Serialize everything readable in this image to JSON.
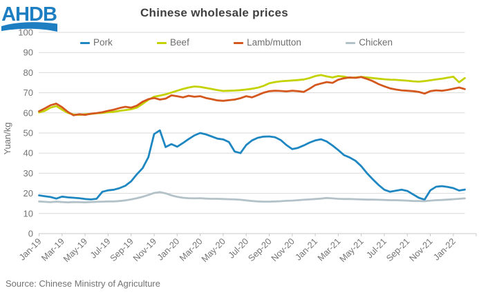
{
  "header": {
    "title": "Chinese wholesale prices",
    "logo_text": "AHDB"
  },
  "source_note": "Source: Chinese Ministry of Agriculture",
  "colors": {
    "title_text": "#404040",
    "axis_text": "#737373",
    "legend_text": "#6e6e6e",
    "gridline": "#d9d9d9",
    "axis_line": "#c9c9c9",
    "logo_blue": "#1d7ec2",
    "pork": "#1e87c2",
    "beef": "#c3d200",
    "lamb": "#d4571d",
    "chicken": "#b3c2c9"
  },
  "chart_data": {
    "type": "line",
    "title": "Chinese wholesale prices",
    "xlabel": "",
    "ylabel": "Yuan/kg",
    "ylim": [
      0,
      100
    ],
    "ytick_interval": 10,
    "grid": "horizontal",
    "legend_position": "top",
    "x_unit": "semi-monthly points, Jan-2019 to early Feb-2022 (2 points per month)",
    "x_tick_labels": [
      "Jan-19",
      "Mar-19",
      "May-19",
      "Jul-19",
      "Sep-19",
      "Nov-19",
      "Jan-20",
      "Mar-20",
      "May-20",
      "Jul-20",
      "Sep-20",
      "Nov-20",
      "Jan-21",
      "Mar-21",
      "May-21",
      "Jul-21",
      "Sep-21",
      "Nov-21",
      "Jan-22"
    ],
    "x_tick_indices": [
      0,
      4,
      8,
      12,
      16,
      20,
      24,
      28,
      32,
      36,
      40,
      44,
      48,
      52,
      56,
      60,
      64,
      68,
      72
    ],
    "series": [
      {
        "name": "Pork",
        "color": "#1e87c2",
        "values": [
          19.0,
          18.6,
          18.2,
          17.4,
          18.4,
          18.0,
          17.8,
          17.6,
          17.2,
          17.0,
          17.3,
          20.8,
          21.5,
          21.8,
          22.6,
          23.8,
          26.0,
          29.5,
          32.5,
          38.0,
          49.5,
          51.3,
          43.0,
          44.5,
          43.2,
          45.0,
          47.0,
          48.8,
          50.0,
          49.3,
          48.3,
          47.2,
          46.8,
          45.5,
          40.8,
          40.0,
          44.0,
          46.3,
          47.6,
          48.2,
          48.3,
          47.9,
          46.5,
          44.0,
          42.0,
          42.6,
          43.8,
          45.2,
          46.3,
          46.9,
          45.8,
          43.8,
          41.5,
          39.0,
          37.8,
          36.2,
          33.5,
          30.0,
          27.0,
          24.2,
          21.8,
          20.8,
          21.3,
          21.8,
          21.2,
          19.5,
          17.8,
          16.9,
          21.5,
          23.3,
          23.6,
          23.2,
          22.6,
          21.4,
          21.9
        ]
      },
      {
        "name": "Beef",
        "color": "#c3d200",
        "values": [
          60.2,
          61.0,
          62.6,
          63.4,
          61.6,
          60.0,
          59.2,
          59.0,
          59.3,
          59.5,
          59.8,
          60.0,
          60.3,
          60.5,
          61.0,
          61.4,
          61.8,
          62.6,
          64.5,
          66.5,
          68.0,
          68.6,
          69.2,
          70.1,
          71.0,
          71.9,
          72.6,
          73.1,
          72.9,
          72.4,
          71.9,
          71.3,
          70.9,
          71.0,
          71.1,
          71.3,
          71.6,
          72.0,
          72.5,
          73.4,
          74.7,
          75.3,
          75.7,
          75.9,
          76.1,
          76.3,
          76.6,
          77.3,
          78.3,
          78.8,
          78.1,
          77.6,
          78.3,
          78.0,
          77.4,
          77.6,
          77.9,
          77.6,
          77.3,
          77.0,
          76.7,
          76.5,
          76.4,
          76.2,
          76.0,
          75.7,
          75.5,
          75.8,
          76.2,
          76.6,
          77.0,
          77.5,
          78.0,
          75.2,
          77.3
        ]
      },
      {
        "name": "Lamb/mutton",
        "color": "#d4571d",
        "values": [
          60.8,
          62.2,
          63.8,
          64.6,
          62.8,
          60.5,
          58.8,
          59.3,
          59.0,
          59.6,
          59.9,
          60.3,
          61.0,
          61.6,
          62.4,
          63.0,
          62.6,
          63.6,
          65.5,
          66.8,
          67.4,
          66.6,
          67.1,
          68.7,
          68.3,
          67.7,
          68.5,
          68.0,
          68.3,
          67.4,
          66.8,
          66.2,
          66.0,
          66.3,
          66.6,
          67.3,
          68.3,
          67.7,
          68.8,
          70.0,
          70.8,
          71.0,
          70.9,
          70.7,
          71.0,
          70.8,
          70.4,
          72.0,
          73.8,
          74.6,
          75.3,
          74.9,
          76.5,
          77.2,
          77.6,
          77.4,
          77.8,
          76.9,
          75.8,
          74.3,
          73.2,
          72.2,
          71.6,
          71.2,
          71.0,
          70.8,
          70.4,
          69.6,
          70.8,
          71.2,
          71.0,
          71.4,
          72.0,
          72.6,
          71.8
        ]
      },
      {
        "name": "Chicken",
        "color": "#b3c2c9",
        "values": [
          16.0,
          15.8,
          15.6,
          15.9,
          15.7,
          15.5,
          15.7,
          15.6,
          15.5,
          15.7,
          15.8,
          15.9,
          16.0,
          16.0,
          16.2,
          16.5,
          17.0,
          17.6,
          18.3,
          19.2,
          20.2,
          20.6,
          20.0,
          19.0,
          18.3,
          17.8,
          17.6,
          17.5,
          17.6,
          17.4,
          17.3,
          17.3,
          17.2,
          17.1,
          17.0,
          16.8,
          16.5,
          16.2,
          16.0,
          15.9,
          15.9,
          16.0,
          16.1,
          16.3,
          16.4,
          16.6,
          16.8,
          17.0,
          17.2,
          17.4,
          17.7,
          17.5,
          17.3,
          17.2,
          17.2,
          17.1,
          17.0,
          16.9,
          16.9,
          16.8,
          16.7,
          16.6,
          16.6,
          16.5,
          16.4,
          16.2,
          16.2,
          16.1,
          16.4,
          16.6,
          16.7,
          16.9,
          17.1,
          17.3,
          17.5
        ]
      }
    ]
  }
}
